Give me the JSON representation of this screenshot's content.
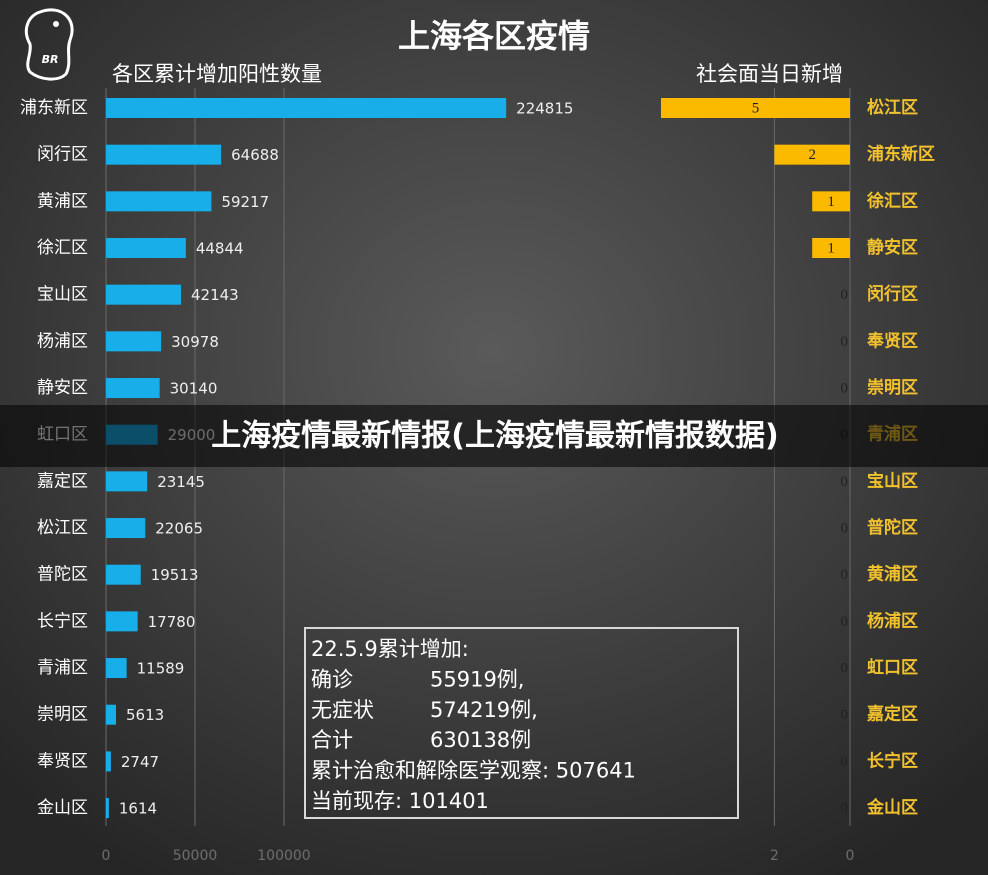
{
  "title": "上海各区疫情",
  "logo_text": "BR",
  "banner": "上海疫情最新情报(上海疫情最新情报数据)",
  "note": [
    [
      "22.5.9累计增加:"
    ],
    [
      "确诊",
      "55919例,"
    ],
    [
      "无症状",
      "574219例,"
    ],
    [
      "合计",
      "630138例"
    ],
    [
      "累计治愈和解除医学观察: 507641"
    ],
    [
      "当前现存: 101401"
    ]
  ],
  "chart_data": [
    {
      "type": "hbar",
      "title": "各区累计增加阳性数量",
      "color": "#17aeea",
      "label_color": "#ffffff",
      "categories": [
        "浦东新区",
        "闵行区",
        "黄浦区",
        "徐汇区",
        "宝山区",
        "杨浦区",
        "静安区",
        "虹口区",
        "嘉定区",
        "松江区",
        "普陀区",
        "长宁区",
        "青浦区",
        "崇明区",
        "奉贤区",
        "金山区"
      ],
      "values": [
        224815,
        64688,
        59217,
        44844,
        42143,
        30978,
        30140,
        29000,
        23145,
        22065,
        19513,
        17780,
        11589,
        5613,
        2747,
        1614
      ],
      "xlim": [
        0,
        250000
      ],
      "xticks": [
        0,
        50000,
        100000
      ],
      "grid": true,
      "x_reversed": false
    },
    {
      "type": "hbar",
      "title": "社会面当日新增",
      "color": "#fbb900",
      "label_color": "#f2c12e",
      "categories": [
        "松江区",
        "浦东新区",
        "徐汇区",
        "静安区",
        "闵行区",
        "奉贤区",
        "崇明区",
        "青浦区",
        "宝山区",
        "普陀区",
        "黄浦区",
        "杨浦区",
        "虹口区",
        "嘉定区",
        "长宁区",
        "金山区"
      ],
      "values": [
        5,
        2,
        1,
        1,
        0,
        0,
        0,
        0,
        0,
        0,
        0,
        0,
        0,
        0,
        0,
        0
      ],
      "xlim": [
        0,
        5
      ],
      "xticks": [
        0,
        2
      ],
      "grid": true,
      "x_reversed": true
    }
  ]
}
